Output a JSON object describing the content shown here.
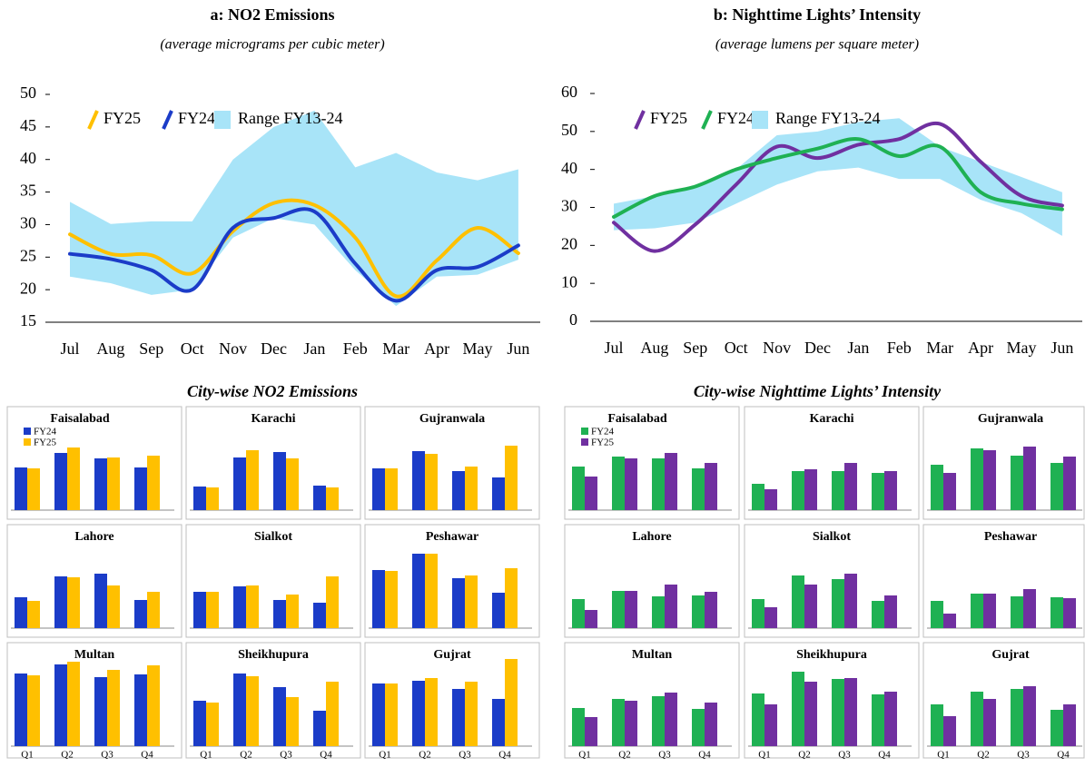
{
  "chart_data": [
    {
      "type": "line",
      "title": "a: NO2 Emissions",
      "subtitle": "(average micrograms per cubic meter)",
      "categories": [
        "Jul",
        "Aug",
        "Sep",
        "Oct",
        "Nov",
        "Dec",
        "Jan",
        "Feb",
        "Mar",
        "Apr",
        "May",
        "Jun"
      ],
      "series": [
        {
          "name": "FY25",
          "color": "#ffc000",
          "values": [
            28.5,
            25.5,
            25.3,
            22.5,
            29,
            33.3,
            33,
            28,
            19,
            24.5,
            29.5,
            25.6
          ]
        },
        {
          "name": "FY24",
          "color": "#1b3cc8",
          "values": [
            25.5,
            24.7,
            23,
            20,
            29.5,
            31,
            32,
            24,
            18.3,
            23,
            23.5,
            26.8
          ]
        },
        {
          "name": "Range FY13-24",
          "color": "#a8e4f8",
          "low": [
            22,
            21,
            19.2,
            20,
            28,
            31,
            30,
            23,
            17.5,
            22,
            22.3,
            24.6
          ],
          "high": [
            33.5,
            30.1,
            30.5,
            30.5,
            40,
            45,
            47.5,
            38.8,
            41,
            38,
            36.8,
            38.5
          ]
        }
      ],
      "ylim": [
        15,
        50
      ],
      "yticks": [
        15,
        20,
        25,
        30,
        35,
        40,
        45,
        50
      ]
    },
    {
      "type": "line",
      "title": "b: Nighttime Lights’ Intensity",
      "subtitle": "(average lumens per square meter)",
      "categories": [
        "Jul",
        "Aug",
        "Sep",
        "Oct",
        "Nov",
        "Dec",
        "Jan",
        "Feb",
        "Mar",
        "Apr",
        "May",
        "Jun"
      ],
      "series": [
        {
          "name": "FY25",
          "color": "#7030a0",
          "values": [
            26,
            18.5,
            25.5,
            36,
            46,
            43,
            46.5,
            48,
            52,
            42,
            33,
            30.5
          ]
        },
        {
          "name": "FY24",
          "color": "#1fb153",
          "values": [
            27.5,
            33,
            35.5,
            40,
            43,
            45.5,
            48,
            43.5,
            46,
            34,
            31,
            29.5
          ]
        },
        {
          "name": "Range FY13-24",
          "color": "#a8e4f8",
          "low": [
            24,
            24.5,
            26,
            31,
            36,
            39.5,
            40.5,
            37.5,
            37.5,
            32,
            28.5,
            22.5
          ],
          "high": [
            31,
            33,
            35,
            40,
            49,
            50,
            52.5,
            53.5,
            46,
            42,
            38,
            34
          ]
        }
      ],
      "ylim": [
        0,
        60
      ],
      "yticks": [
        0,
        10,
        20,
        30,
        40,
        50,
        60
      ]
    },
    {
      "type": "bar",
      "title": "City-wise NO2 Emissions",
      "categories": [
        "Q1",
        "Q2",
        "Q3",
        "Q4"
      ],
      "series": [
        {
          "name": "FY24",
          "color": "#1b3cc8"
        },
        {
          "name": "FY25",
          "color": "#ffc000"
        }
      ],
      "panels": [
        {
          "title": "Faisalabad",
          "values": [
            [
              47,
              63,
              57,
              47
            ],
            [
              46,
              69,
              58,
              60
            ]
          ]
        },
        {
          "title": "Karachi",
          "values": [
            [
              26,
              58,
              64,
              27
            ],
            [
              25,
              66,
              57,
              25
            ]
          ]
        },
        {
          "title": "Gujranwala",
          "values": [
            [
              46,
              65,
              43,
              36
            ],
            [
              46,
              62,
              48,
              71
            ]
          ]
        },
        {
          "title": "Lahore",
          "values": [
            [
              34,
              57,
              60,
              31
            ],
            [
              30,
              56,
              47,
              40
            ]
          ]
        },
        {
          "title": "Sialkot",
          "values": [
            [
              40,
              46,
              31,
              28
            ],
            [
              40,
              47,
              37,
              57
            ]
          ]
        },
        {
          "title": "Peshawar",
          "values": [
            [
              64,
              82,
              55,
              39
            ],
            [
              63,
              82,
              58,
              66
            ]
          ]
        },
        {
          "title": "Multan",
          "values": [
            [
              80,
              90,
              76,
              79
            ],
            [
              78,
              93,
              84,
              89
            ]
          ]
        },
        {
          "title": "Sheikhupura",
          "values": [
            [
              50,
              80,
              65,
              39
            ],
            [
              48,
              77,
              54,
              71
            ]
          ]
        },
        {
          "title": "Gujrat",
          "values": [
            [
              69,
              72,
              63,
              52
            ],
            [
              69,
              75,
              71,
              96
            ]
          ]
        }
      ]
    },
    {
      "type": "bar",
      "title": "City-wise Nighttime Lights’ Intensity",
      "categories": [
        "Q1",
        "Q2",
        "Q3",
        "Q4"
      ],
      "series": [
        {
          "name": "FY24",
          "color": "#1fb153"
        },
        {
          "name": "FY25",
          "color": "#7030a0"
        }
      ],
      "panels": [
        {
          "title": "Faisalabad",
          "values": [
            [
              48,
              59,
              57,
              46
            ],
            [
              37,
              57,
              63,
              52
            ]
          ]
        },
        {
          "title": "Karachi",
          "values": [
            [
              29,
              43,
              43,
              41
            ],
            [
              23,
              45,
              52,
              43
            ]
          ]
        },
        {
          "title": "Gujranwala",
          "values": [
            [
              50,
              68,
              60,
              52
            ],
            [
              41,
              66,
              70,
              59
            ]
          ]
        },
        {
          "title": "Lahore",
          "values": [
            [
              32,
              41,
              35,
              36
            ],
            [
              20,
              41,
              48,
              40
            ]
          ]
        },
        {
          "title": "Sialkot",
          "values": [
            [
              32,
              58,
              54,
              30
            ],
            [
              23,
              48,
              60,
              36
            ]
          ]
        },
        {
          "title": "Peshawar",
          "values": [
            [
              30,
              38,
              35,
              34
            ],
            [
              16,
              38,
              43,
              33
            ]
          ]
        },
        {
          "title": "Multan",
          "values": [
            [
              42,
              52,
              55,
              41
            ],
            [
              32,
              50,
              59,
              48
            ]
          ]
        },
        {
          "title": "Sheikhupura",
          "values": [
            [
              58,
              82,
              74,
              57
            ],
            [
              46,
              71,
              75,
              60
            ]
          ]
        },
        {
          "title": "Gujrat",
          "values": [
            [
              46,
              60,
              63,
              40
            ],
            [
              33,
              52,
              66,
              46
            ]
          ]
        }
      ]
    }
  ]
}
